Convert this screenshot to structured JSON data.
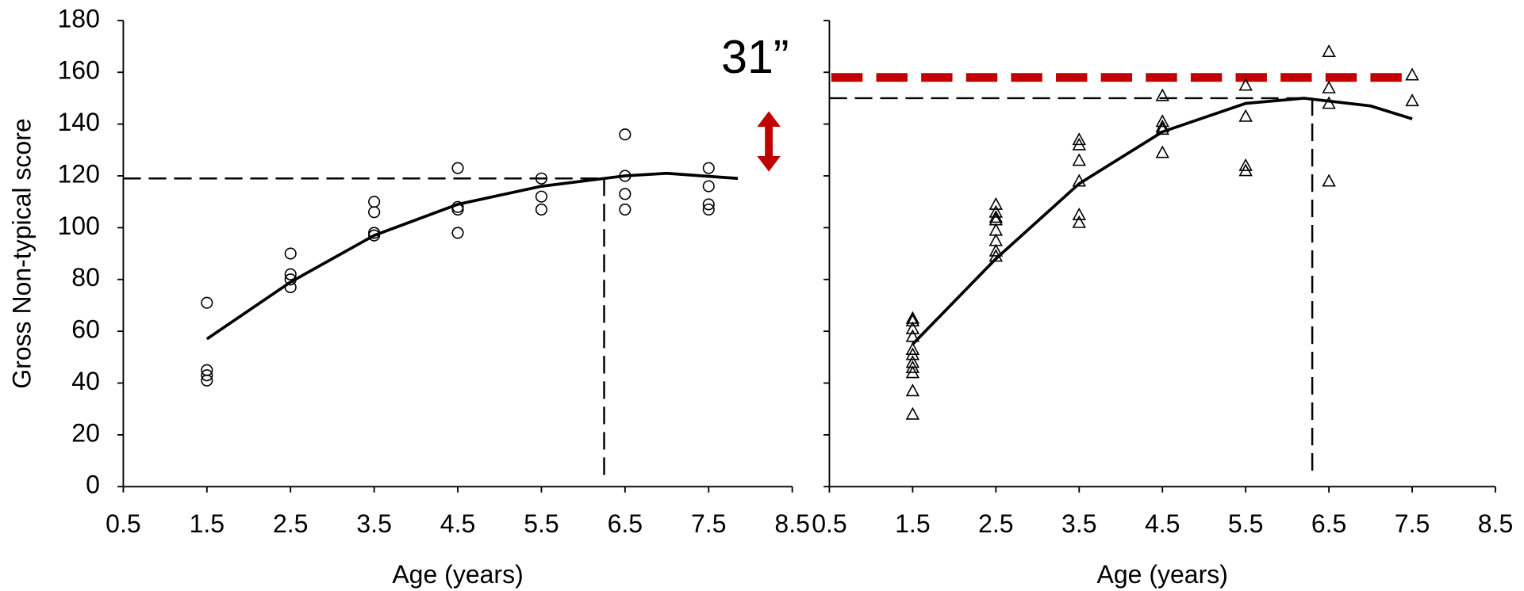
{
  "chart_data": [
    {
      "type": "scatter",
      "marker": "circle",
      "xlabel": "Age (years)",
      "ylabel": "Gross Non-typical score",
      "xlim": [
        0.5,
        8.5
      ],
      "xticks": [
        0.5,
        1.5,
        2.5,
        3.5,
        4.5,
        5.5,
        6.5,
        7.5,
        8.5
      ],
      "ylim": [
        0,
        180
      ],
      "yticks": [
        0,
        20,
        40,
        60,
        80,
        100,
        120,
        140,
        160,
        180
      ],
      "show_ytick_labels": true,
      "x": [
        1.5,
        1.5,
        1.5,
        1.5,
        2.5,
        2.5,
        2.5,
        2.5,
        3.5,
        3.5,
        3.5,
        3.5,
        4.5,
        4.5,
        4.5,
        4.5,
        5.5,
        5.5,
        5.5,
        6.5,
        6.5,
        6.5,
        6.5,
        7.5,
        7.5,
        7.5,
        7.5
      ],
      "values": [
        71,
        45,
        43,
        41,
        90,
        82,
        80,
        77,
        110,
        106,
        98,
        97,
        123,
        108,
        107,
        98,
        119,
        112,
        107,
        136,
        120,
        113,
        107,
        123,
        116,
        109,
        107
      ],
      "fit": {
        "x": [
          1.5,
          2.5,
          3.5,
          4.5,
          5.5,
          6.5,
          7.0,
          7.85
        ],
        "values": [
          57,
          79,
          97,
          109,
          116,
          120,
          121,
          119
        ]
      },
      "reference_lines": {
        "x": 6.25,
        "y": 119
      },
      "annotation": {
        "text": "31”",
        "color": "#c00000"
      }
    },
    {
      "type": "scatter",
      "marker": "triangle",
      "xlabel": "Age (years)",
      "xlim": [
        0.5,
        8.5
      ],
      "xticks": [
        0.5,
        1.5,
        2.5,
        3.5,
        4.5,
        5.5,
        6.5,
        7.5,
        8.5
      ],
      "ylim": [
        0,
        180
      ],
      "yticks": [
        0,
        20,
        40,
        60,
        80,
        100,
        120,
        140,
        160,
        180
      ],
      "show_ytick_labels": false,
      "x": [
        1.5,
        1.5,
        1.5,
        1.5,
        1.5,
        1.5,
        1.5,
        1.5,
        1.5,
        1.5,
        1.5,
        2.5,
        2.5,
        2.5,
        2.5,
        2.5,
        2.5,
        2.5,
        2.5,
        3.5,
        3.5,
        3.5,
        3.5,
        3.5,
        3.5,
        4.5,
        4.5,
        4.5,
        4.5,
        4.5,
        5.5,
        5.5,
        5.5,
        5.5,
        6.5,
        6.5,
        6.5,
        6.5,
        7.5,
        7.5
      ],
      "values": [
        65,
        64,
        61,
        58,
        53,
        51,
        48,
        46,
        44,
        37,
        28,
        109,
        106,
        104,
        103,
        99,
        95,
        91,
        89,
        134,
        132,
        126,
        118,
        105,
        102,
        151,
        141,
        139,
        138,
        129,
        155,
        143,
        124,
        122,
        168,
        154,
        148,
        118,
        159,
        149
      ],
      "fit": {
        "x": [
          1.5,
          2.5,
          3.5,
          4.5,
          5.5,
          6.2,
          7.0,
          7.5
        ],
        "values": [
          55,
          88,
          117,
          137,
          148,
          150,
          147,
          142
        ]
      },
      "reference_lines": {
        "x": 6.3,
        "y": 150
      },
      "target_line": {
        "y": 158,
        "color": "#c00000"
      }
    }
  ]
}
